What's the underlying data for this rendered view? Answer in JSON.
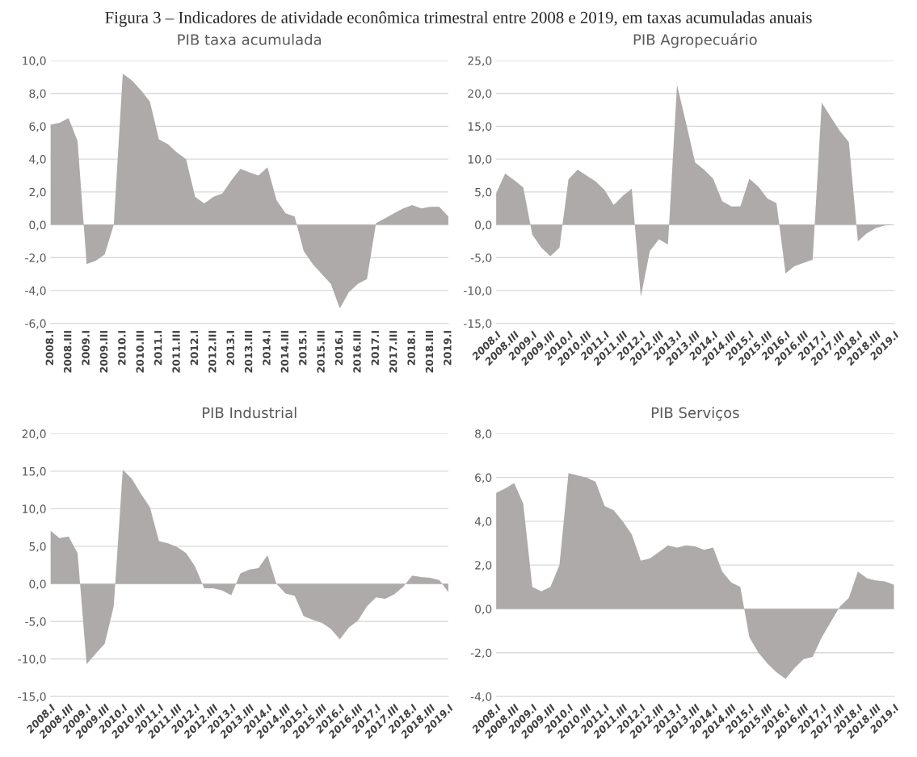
{
  "chart_data": [
    {
      "type": "area",
      "title": "PIB taxa acumulada",
      "annotations": [
        "Figura 3 – Indicadores de atividade econômica trimestral entre 2008 e 2019, em taxas acumuladas anuais"
      ],
      "categories": [
        "2008.I",
        null,
        "2008.III",
        null,
        "2009.I",
        null,
        "2009.III",
        null,
        "2010.I",
        null,
        "2010.III",
        null,
        "2011.I",
        null,
        "2011.III",
        null,
        "2012.I",
        null,
        "2012.III",
        null,
        "2013.I",
        null,
        "2013.III",
        null,
        "2014.I",
        null,
        "2014.III",
        null,
        "2015.I",
        null,
        "2015.III",
        null,
        "2016.I",
        null,
        "2016.III",
        null,
        "2017.I",
        null,
        "2017.III",
        null,
        "2018.I",
        null,
        "2018.III",
        null,
        "2019.I"
      ],
      "series": [
        {
          "color": "#aeaaaa",
          "values": [
            6.1,
            6.2,
            6.5,
            5.1,
            -2.4,
            -2.2,
            -1.8,
            0.0,
            9.2,
            8.8,
            8.2,
            7.5,
            5.2,
            4.9,
            4.4,
            4.0,
            1.7,
            1.3,
            1.7,
            1.9,
            2.7,
            3.4,
            3.2,
            3.0,
            3.5,
            1.5,
            0.7,
            0.5,
            -1.6,
            -2.4,
            -3.0,
            -3.6,
            -5.1,
            -4.1,
            -3.6,
            -3.3,
            0.1,
            0.4,
            0.7,
            1.0,
            1.2,
            1.0,
            1.1,
            1.1,
            0.5
          ]
        }
      ],
      "ylim": [
        -6,
        10
      ],
      "yticks": [
        {
          "value": -6,
          "label": "-6,0"
        },
        {
          "value": -4,
          "label": "-4,0"
        },
        {
          "value": -2,
          "label": "-2,0"
        },
        {
          "value": 0,
          "label": "0,0"
        },
        {
          "value": 2,
          "label": "2,0"
        },
        {
          "value": 4,
          "label": "4,0"
        },
        {
          "value": 6,
          "label": "6,0"
        },
        {
          "value": 8,
          "label": "8,0"
        },
        {
          "value": 10,
          "label": "10,0"
        }
      ],
      "grid": "y"
    },
    {
      "type": "area",
      "title": "PIB Agropecuário",
      "categories": [
        "2008.I",
        null,
        "2008.III",
        null,
        "2009.I",
        null,
        "2009.III",
        null,
        "2010.I",
        null,
        "2010.III",
        null,
        "2011.I",
        null,
        "2011.III",
        null,
        "2012.I",
        null,
        "2012.III",
        null,
        "2013.I",
        null,
        "2013.III",
        null,
        "2014.I",
        null,
        "2014.III",
        null,
        "2015.I",
        null,
        "2015.III",
        null,
        "2016.I",
        null,
        "2016.III",
        null,
        "2017.I",
        null,
        "2017.III",
        null,
        "2018.I",
        null,
        "2018.III",
        null,
        "2019.I"
      ],
      "series": [
        {
          "color": "#aeaaaa",
          "values": [
            4.8,
            7.8,
            6.8,
            5.7,
            -1.5,
            -3.5,
            -4.8,
            -3.5,
            6.9,
            8.4,
            7.5,
            6.6,
            5.3,
            3.0,
            4.4,
            5.5,
            -11.0,
            -4.0,
            -2.2,
            -3.0,
            21.3,
            15.5,
            9.5,
            8.4,
            7.0,
            3.6,
            2.8,
            2.8,
            7.0,
            5.8,
            4.0,
            3.3,
            -7.4,
            -6.3,
            -5.8,
            -5.3,
            18.6,
            16.4,
            14.3,
            12.6,
            -2.5,
            -1.3,
            -0.5,
            -0.1,
            0.0
          ]
        }
      ],
      "ylim": [
        -15,
        25
      ],
      "yticks": [
        {
          "value": -15,
          "label": "-15,0"
        },
        {
          "value": -10,
          "label": "-10,0"
        },
        {
          "value": -5,
          "label": "-5,0"
        },
        {
          "value": 0,
          "label": "0,0"
        },
        {
          "value": 5,
          "label": "5,0"
        },
        {
          "value": 10,
          "label": "10,0"
        },
        {
          "value": 15,
          "label": "15,0"
        },
        {
          "value": 20,
          "label": "20,0"
        },
        {
          "value": 25,
          "label": "25,0"
        }
      ],
      "grid": "y"
    },
    {
      "type": "area",
      "title": "PIB Industrial",
      "categories": [
        "2008.I",
        null,
        "2008.III",
        null,
        "2009.I",
        null,
        "2009.III",
        null,
        "2010.I",
        null,
        "2010.III",
        null,
        "2011.I",
        null,
        "2011.III",
        null,
        "2012.I",
        null,
        "2012.III",
        null,
        "2013.I",
        null,
        "2013.III",
        null,
        "2014.I",
        null,
        "2014.III",
        null,
        "2015.I",
        null,
        "2015.III",
        null,
        "2016.I",
        null,
        "2016.III",
        null,
        "2017.I",
        null,
        "2017.III",
        null,
        "2018.I",
        null,
        "2018.III",
        null,
        "2019.I"
      ],
      "series": [
        {
          "color": "#aeaaaa",
          "values": [
            7.1,
            6.1,
            6.3,
            4.1,
            -10.7,
            -9.3,
            -8.0,
            -3.0,
            15.2,
            14.0,
            12.0,
            10.2,
            5.7,
            5.4,
            4.9,
            4.1,
            2.3,
            -0.6,
            -0.6,
            -0.9,
            -1.5,
            1.4,
            1.9,
            2.1,
            3.8,
            0.0,
            -1.3,
            -1.6,
            -4.3,
            -4.8,
            -5.2,
            -6.0,
            -7.4,
            -5.8,
            -4.9,
            -3.0,
            -1.8,
            -2.0,
            -1.4,
            -0.4,
            1.1,
            0.9,
            0.8,
            0.5,
            -1.1
          ]
        }
      ],
      "ylim": [
        -15,
        20
      ],
      "yticks": [
        {
          "value": -15,
          "label": "-15,0"
        },
        {
          "value": -10,
          "label": "-10,0"
        },
        {
          "value": -5,
          "label": "-5,0"
        },
        {
          "value": 0,
          "label": "0,0"
        },
        {
          "value": 5,
          "label": "5,0"
        },
        {
          "value": 10,
          "label": "10,0"
        },
        {
          "value": 15,
          "label": "15,0"
        },
        {
          "value": 20,
          "label": "20,0"
        }
      ],
      "grid": "y"
    },
    {
      "type": "area",
      "title": "PIB Serviços",
      "categories": [
        "2008.I",
        null,
        "2008.III",
        null,
        "2009.I",
        null,
        "2009.III",
        null,
        "2010.I",
        null,
        "2010.III",
        null,
        "2011.I",
        null,
        "2011.III",
        null,
        "2012.I",
        null,
        "2012.III",
        null,
        "2013.I",
        null,
        "2013.III",
        null,
        "2014.I",
        null,
        "2014.III",
        null,
        "2015.I",
        null,
        "2015.III",
        null,
        "2016.I",
        null,
        "2016.III",
        null,
        "2017.I",
        null,
        "2017.III",
        null,
        "2018.I",
        null,
        "2018.III",
        null,
        "2019.I"
      ],
      "series": [
        {
          "color": "#aeaaaa",
          "values": [
            5.3,
            5.5,
            5.75,
            4.8,
            1.0,
            0.8,
            1.0,
            2.0,
            6.2,
            6.1,
            6.0,
            5.8,
            4.7,
            4.5,
            4.0,
            3.4,
            2.2,
            2.3,
            2.6,
            2.9,
            2.8,
            2.9,
            2.85,
            2.7,
            2.8,
            1.7,
            1.2,
            1.0,
            -1.3,
            -2.0,
            -2.5,
            -2.9,
            -3.2,
            -2.7,
            -2.3,
            -2.2,
            -1.3,
            -0.6,
            0.1,
            0.5,
            1.7,
            1.4,
            1.3,
            1.25,
            1.1
          ]
        }
      ],
      "ylim": [
        -4,
        8
      ],
      "yticks": [
        {
          "value": -4,
          "label": "-4,0"
        },
        {
          "value": -2,
          "label": "-2,0"
        },
        {
          "value": 0,
          "label": "0,0"
        },
        {
          "value": 2,
          "label": "2,0"
        },
        {
          "value": 4,
          "label": "4,0"
        },
        {
          "value": 6,
          "label": "6,0"
        },
        {
          "value": 8,
          "label": "8,0"
        }
      ],
      "grid": "y"
    }
  ]
}
